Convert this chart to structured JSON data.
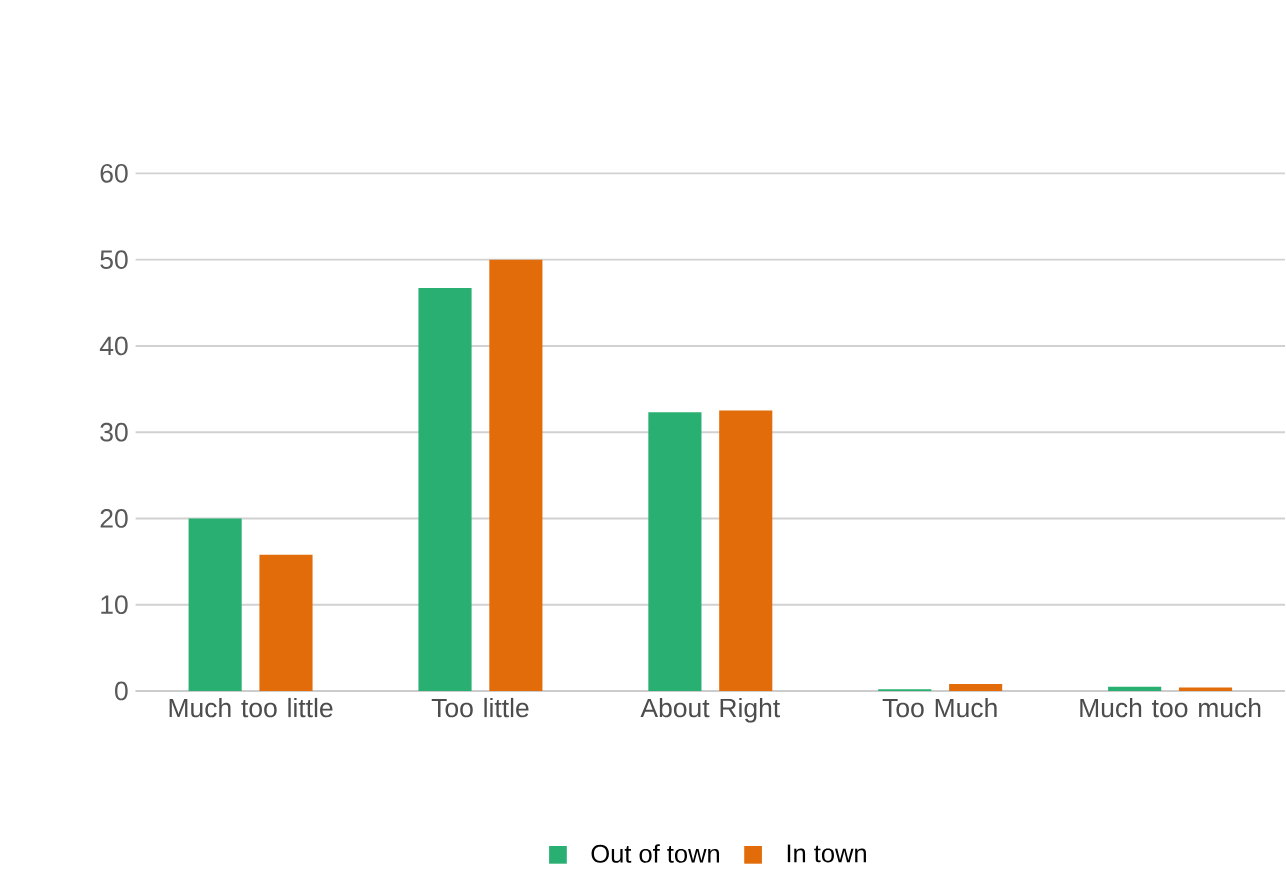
{
  "chart_data": {
    "type": "bar",
    "categories": [
      "Much too little",
      "Too little",
      "About Right",
      "Too Much",
      "Much too much"
    ],
    "series": [
      {
        "name": "Out of town",
        "color": "#2aaf73",
        "values": [
          20,
          46.7,
          32.3,
          0.2,
          0.5
        ]
      },
      {
        "name": "In town",
        "color": "#e36c0a",
        "values": [
          15.8,
          50,
          32.5,
          0.8,
          0.4
        ]
      }
    ],
    "ylim": [
      0,
      60
    ],
    "yticks": [
      0,
      10,
      20,
      30,
      40,
      50,
      60
    ],
    "grid": "y",
    "legend": "bottom"
  }
}
